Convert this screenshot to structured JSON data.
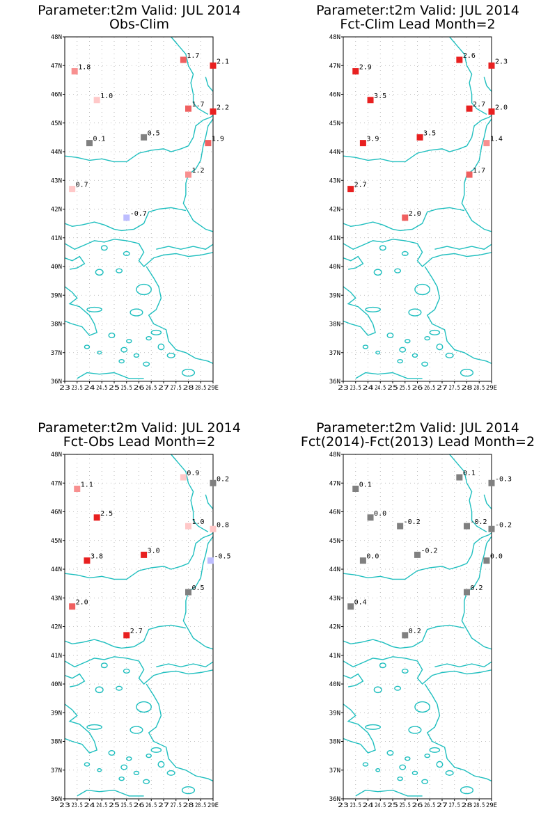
{
  "legend_colors": {
    "neg_light": "#bdbdff",
    "neutral": "#808080",
    "pos_1": "#ffc8c8",
    "pos_2": "#f89090",
    "pos_3": "#f06060",
    "pos_4": "#e82020"
  },
  "chart_data": [
    {
      "type": "scatter",
      "title": "Parameter:t2m Valid: JUL 2014",
      "subtitle": "Obs-Clim",
      "xlim": [
        23,
        29
      ],
      "ylim": [
        36,
        48
      ],
      "x_ticks": [
        "23",
        "23.5",
        "24",
        "24.5",
        "25",
        "25.5",
        "26",
        "26.5",
        "27",
        "27.5",
        "28",
        "28.5",
        "29E"
      ],
      "y_ticks": [
        "36N",
        "37N",
        "38N",
        "39N",
        "40N",
        "41N",
        "42N",
        "43N",
        "44N",
        "45N",
        "46N",
        "47N",
        "48N"
      ],
      "grid": true,
      "points": [
        {
          "lon": 23.4,
          "lat": 46.8,
          "value": "1.8",
          "color": "#f89090"
        },
        {
          "lon": 24.3,
          "lat": 45.8,
          "value": "1.0",
          "color": "#ffc8c8"
        },
        {
          "lon": 27.8,
          "lat": 47.2,
          "value": "1.7",
          "color": "#f06060"
        },
        {
          "lon": 29.0,
          "lat": 47.0,
          "value": "2.1",
          "color": "#e82020"
        },
        {
          "lon": 28.0,
          "lat": 45.5,
          "value": "1.7",
          "color": "#f06060"
        },
        {
          "lon": 29.0,
          "lat": 45.4,
          "value": "2.2",
          "color": "#e82020"
        },
        {
          "lon": 24.0,
          "lat": 44.3,
          "value": "0.1",
          "color": "#808080"
        },
        {
          "lon": 26.2,
          "lat": 44.5,
          "value": "0.5",
          "color": "#808080"
        },
        {
          "lon": 28.8,
          "lat": 44.3,
          "value": "1.9",
          "color": "#f06060"
        },
        {
          "lon": 28.0,
          "lat": 43.2,
          "value": "1.2",
          "color": "#f89090"
        },
        {
          "lon": 23.3,
          "lat": 42.7,
          "value": "0.7",
          "color": "#ffc8c8"
        },
        {
          "lon": 25.5,
          "lat": 41.7,
          "value": "-0.7",
          "color": "#bdbdff"
        }
      ]
    },
    {
      "type": "scatter",
      "title": "Parameter:t2m Valid: JUL 2014",
      "subtitle": "Fct-Clim Lead Month=2",
      "xlim": [
        23,
        29
      ],
      "ylim": [
        36,
        48
      ],
      "x_ticks": [
        "23",
        "23.5",
        "24",
        "24.5",
        "25",
        "25.5",
        "26",
        "26.5",
        "27",
        "27.5",
        "28",
        "28.5",
        "29E"
      ],
      "y_ticks": [
        "36N",
        "37N",
        "38N",
        "39N",
        "40N",
        "41N",
        "42N",
        "43N",
        "44N",
        "45N",
        "46N",
        "47N",
        "48N"
      ],
      "grid": true,
      "points": [
        {
          "lon": 23.5,
          "lat": 46.8,
          "value": "2.9",
          "color": "#e82020"
        },
        {
          "lon": 24.1,
          "lat": 45.8,
          "value": "3.5",
          "color": "#e82020"
        },
        {
          "lon": 27.7,
          "lat": 47.2,
          "value": "2.6",
          "color": "#e82020"
        },
        {
          "lon": 29.0,
          "lat": 47.0,
          "value": "2.3",
          "color": "#e82020"
        },
        {
          "lon": 28.1,
          "lat": 45.5,
          "value": "2.7",
          "color": "#e82020"
        },
        {
          "lon": 29.0,
          "lat": 45.4,
          "value": "2.0",
          "color": "#e82020"
        },
        {
          "lon": 23.8,
          "lat": 44.3,
          "value": "3.9",
          "color": "#e82020"
        },
        {
          "lon": 26.1,
          "lat": 44.5,
          "value": "3.5",
          "color": "#e82020"
        },
        {
          "lon": 28.8,
          "lat": 44.3,
          "value": "1.4",
          "color": "#f89090"
        },
        {
          "lon": 28.1,
          "lat": 43.2,
          "value": "1.7",
          "color": "#f06060"
        },
        {
          "lon": 23.3,
          "lat": 42.7,
          "value": "2.7",
          "color": "#e82020"
        },
        {
          "lon": 25.5,
          "lat": 41.7,
          "value": "2.0",
          "color": "#f06060"
        }
      ]
    },
    {
      "type": "scatter",
      "title": "Parameter:t2m Valid: JUL 2014",
      "subtitle": "Fct-Obs Lead Month=2",
      "xlim": [
        23,
        29
      ],
      "ylim": [
        36,
        48
      ],
      "x_ticks": [
        "23",
        "23.5",
        "24",
        "24.5",
        "25",
        "25.5",
        "26",
        "26.5",
        "27",
        "27.5",
        "28",
        "28.5",
        "29E"
      ],
      "y_ticks": [
        "36N",
        "37N",
        "38N",
        "39N",
        "40N",
        "41N",
        "42N",
        "43N",
        "44N",
        "45N",
        "46N",
        "47N",
        "48N"
      ],
      "grid": true,
      "points": [
        {
          "lon": 23.5,
          "lat": 46.8,
          "value": "1.1",
          "color": "#f89090"
        },
        {
          "lon": 24.3,
          "lat": 45.8,
          "value": "2.5",
          "color": "#e82020"
        },
        {
          "lon": 27.8,
          "lat": 47.2,
          "value": "0.9",
          "color": "#ffc8c8"
        },
        {
          "lon": 29.0,
          "lat": 47.0,
          "value": "0.2",
          "color": "#808080"
        },
        {
          "lon": 28.0,
          "lat": 45.5,
          "value": "1.0",
          "color": "#ffc8c8"
        },
        {
          "lon": 29.0,
          "lat": 45.4,
          "value": "0.8",
          "color": "#ffc8c8"
        },
        {
          "lon": 23.9,
          "lat": 44.3,
          "value": "3.8",
          "color": "#e82020"
        },
        {
          "lon": 26.2,
          "lat": 44.5,
          "value": "3.0",
          "color": "#e82020"
        },
        {
          "lon": 28.9,
          "lat": 44.3,
          "value": "-0.5",
          "color": "#bdbdff"
        },
        {
          "lon": 28.0,
          "lat": 43.2,
          "value": "0.5",
          "color": "#808080"
        },
        {
          "lon": 23.3,
          "lat": 42.7,
          "value": "2.0",
          "color": "#f06060"
        },
        {
          "lon": 25.5,
          "lat": 41.7,
          "value": "2.7",
          "color": "#e82020"
        }
      ]
    },
    {
      "type": "scatter",
      "title": "Parameter:t2m Valid: JUL 2014",
      "subtitle": "Fct(2014)-Fct(2013) Lead Month=2",
      "xlim": [
        23,
        29
      ],
      "ylim": [
        36,
        48
      ],
      "x_ticks": [
        "23",
        "23.5",
        "24",
        "24.5",
        "25",
        "25.5",
        "26",
        "26.5",
        "27",
        "27.5",
        "28",
        "28.5",
        "29E"
      ],
      "y_ticks": [
        "36N",
        "37N",
        "38N",
        "39N",
        "40N",
        "41N",
        "42N",
        "43N",
        "44N",
        "45N",
        "46N",
        "47N",
        "48N"
      ],
      "grid": true,
      "points": [
        {
          "lon": 23.5,
          "lat": 46.8,
          "value": "0.1",
          "color": "#808080"
        },
        {
          "lon": 24.1,
          "lat": 45.8,
          "value": "0.0",
          "color": "#808080"
        },
        {
          "lon": 27.7,
          "lat": 47.2,
          "value": "0.1",
          "color": "#808080"
        },
        {
          "lon": 29.0,
          "lat": 47.0,
          "value": "-0.3",
          "color": "#808080"
        },
        {
          "lon": 25.3,
          "lat": 45.5,
          "value": "-0.2",
          "color": "#808080"
        },
        {
          "lon": 28.0,
          "lat": 45.5,
          "value": "-0.2",
          "color": "#808080"
        },
        {
          "lon": 29.0,
          "lat": 45.4,
          "value": "-0.2",
          "color": "#808080"
        },
        {
          "lon": 23.8,
          "lat": 44.3,
          "value": "0.0",
          "color": "#808080"
        },
        {
          "lon": 26.0,
          "lat": 44.5,
          "value": "-0.2",
          "color": "#808080"
        },
        {
          "lon": 28.8,
          "lat": 44.3,
          "value": "0.0",
          "color": "#808080"
        },
        {
          "lon": 28.0,
          "lat": 43.2,
          "value": "0.2",
          "color": "#808080"
        },
        {
          "lon": 23.3,
          "lat": 42.7,
          "value": "0.4",
          "color": "#808080"
        },
        {
          "lon": 25.5,
          "lat": 41.7,
          "value": "0.2",
          "color": "#808080"
        }
      ]
    }
  ]
}
